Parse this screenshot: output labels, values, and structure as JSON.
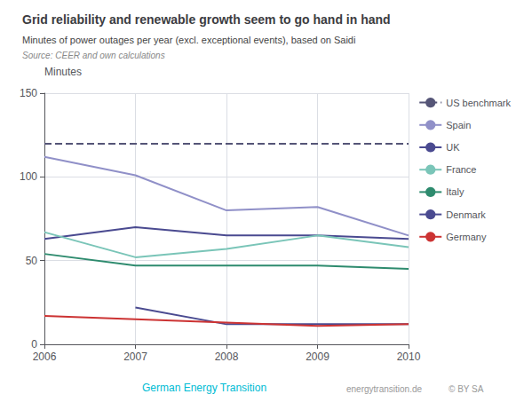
{
  "chart_data": {
    "type": "line",
    "title": "Grid reliability and renewable growth seem to go hand in hand",
    "subtitle": "Minutes of power outages per year (excl. exceptional events), based on Saidi",
    "source": "Source: CEER and own calculations",
    "y_label": "Minutes",
    "x": [
      2006,
      2007,
      2008,
      2009,
      2010
    ],
    "xlim": [
      2006,
      2010
    ],
    "xticks": [
      2006,
      2007,
      2008,
      2009,
      2010
    ],
    "ylim": [
      0,
      150
    ],
    "yticks": [
      0,
      50,
      100,
      150
    ],
    "grid": true,
    "legend": "right",
    "reference_lines": [
      {
        "name": "US benchmark",
        "value": 120,
        "color": "#555577",
        "line_style": "dashed"
      }
    ],
    "series": [
      {
        "name": "Spain",
        "color": "#9090c8",
        "values": [
          112,
          101,
          80,
          82,
          65
        ]
      },
      {
        "name": "UK",
        "color": "#4a4a90",
        "values": [
          63,
          70,
          65,
          65,
          63
        ]
      },
      {
        "name": "France",
        "color": "#7ac5b8",
        "values": [
          67,
          52,
          57,
          65,
          58
        ]
      },
      {
        "name": "Italy",
        "color": "#2e8b6e",
        "values": [
          54,
          47,
          47,
          47,
          45
        ]
      },
      {
        "name": "Denmark",
        "color": "#4a4a90",
        "values": [
          null,
          22,
          12,
          12,
          12
        ]
      },
      {
        "name": "Germany",
        "color": "#cc3333",
        "values": [
          17,
          15,
          13,
          11,
          12
        ]
      }
    ],
    "annotations": [
      {
        "text": "German Energy Transition",
        "color": "#00bcd4"
      },
      {
        "text": "energytransition.de"
      },
      {
        "text": "© BY SA"
      }
    ]
  }
}
